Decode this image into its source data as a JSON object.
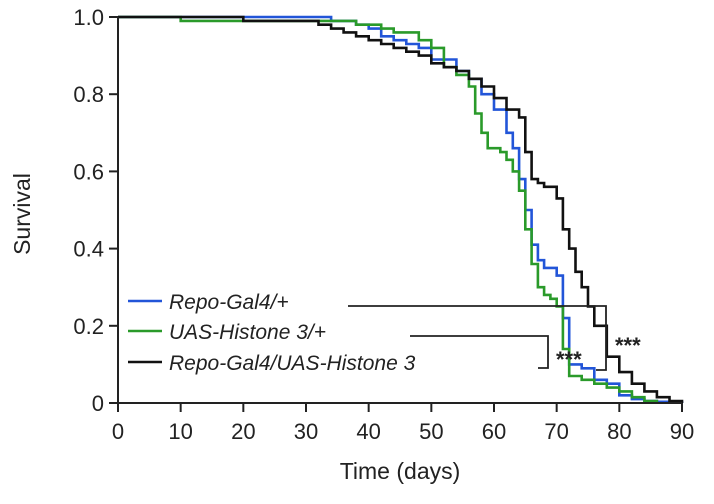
{
  "chart_data": {
    "type": "line",
    "title": "",
    "xlabel": "Time (days)",
    "ylabel": "Survival",
    "xlim": [
      0,
      90
    ],
    "ylim": [
      0,
      1.0
    ],
    "x_ticks": [
      0,
      10,
      20,
      30,
      40,
      50,
      60,
      70,
      80,
      90
    ],
    "x_tick_labels": [
      "0",
      "10",
      "20",
      "30",
      "40",
      "50",
      "60",
      "70",
      "80",
      "90"
    ],
    "y_ticks": [
      0,
      0.2,
      0.4,
      0.6,
      0.8,
      1.0
    ],
    "y_tick_labels": [
      "0",
      "0.2",
      "0.4",
      "0.6",
      "0.8",
      "1.0"
    ],
    "grid": false,
    "legend_position": "bottom-left",
    "series": [
      {
        "name": "Repo-Gal4/+",
        "color": "#2255d8",
        "x": [
          0,
          10,
          20,
          30,
          34,
          38,
          40,
          42,
          44,
          46,
          48,
          50,
          54,
          56,
          58,
          60,
          62,
          63,
          64,
          65,
          66,
          67,
          68,
          70,
          71,
          72,
          74,
          76,
          78,
          80,
          82,
          84,
          86,
          88,
          90
        ],
        "y": [
          1.0,
          1.0,
          1.0,
          1.0,
          0.99,
          0.98,
          0.97,
          0.95,
          0.94,
          0.93,
          0.92,
          0.89,
          0.86,
          0.84,
          0.8,
          0.76,
          0.7,
          0.66,
          0.58,
          0.5,
          0.41,
          0.37,
          0.35,
          0.33,
          0.22,
          0.1,
          0.09,
          0.06,
          0.05,
          0.02,
          0.01,
          0.005,
          0.003,
          0.001,
          0.0
        ]
      },
      {
        "name": "UAS-Histone 3/+",
        "color": "#2a9a2a",
        "x": [
          0,
          5,
          10,
          15,
          20,
          25,
          30,
          35,
          38,
          40,
          42,
          44,
          46,
          48,
          50,
          52,
          54,
          56,
          57,
          58,
          59,
          60,
          61,
          62,
          63,
          64,
          65,
          66,
          67,
          68,
          69,
          70,
          71,
          72,
          74,
          76,
          78,
          80,
          82,
          84,
          86
        ],
        "y": [
          1.0,
          1.0,
          0.99,
          0.99,
          0.99,
          0.99,
          0.99,
          0.99,
          0.98,
          0.98,
          0.97,
          0.96,
          0.96,
          0.94,
          0.92,
          0.87,
          0.85,
          0.82,
          0.75,
          0.7,
          0.66,
          0.66,
          0.65,
          0.63,
          0.6,
          0.55,
          0.45,
          0.36,
          0.3,
          0.28,
          0.27,
          0.25,
          0.14,
          0.07,
          0.06,
          0.05,
          0.04,
          0.03,
          0.015,
          0.005,
          0.0
        ]
      },
      {
        "name": "Repo-Gal4/UAS-Histone 3",
        "color": "#111111",
        "x": [
          0,
          10,
          20,
          30,
          32,
          34,
          36,
          38,
          40,
          42,
          44,
          46,
          48,
          50,
          52,
          54,
          56,
          58,
          60,
          62,
          64,
          65,
          66,
          67,
          68,
          70,
          71,
          72,
          73,
          74,
          75,
          76,
          78,
          80,
          82,
          84,
          86,
          88,
          90
        ],
        "y": [
          1.0,
          1.0,
          0.99,
          0.99,
          0.98,
          0.97,
          0.96,
          0.95,
          0.94,
          0.93,
          0.92,
          0.91,
          0.9,
          0.88,
          0.87,
          0.86,
          0.84,
          0.82,
          0.79,
          0.76,
          0.74,
          0.65,
          0.58,
          0.57,
          0.56,
          0.53,
          0.45,
          0.4,
          0.34,
          0.3,
          0.25,
          0.2,
          0.12,
          0.08,
          0.05,
          0.03,
          0.015,
          0.005,
          0.0
        ]
      }
    ],
    "significance": [
      {
        "label": "***",
        "comparison": [
          "UAS-Histone 3/+",
          "Repo-Gal4/UAS-Histone 3"
        ]
      },
      {
        "label": "***",
        "comparison": [
          "Repo-Gal4/+",
          "Repo-Gal4/UAS-Histone 3"
        ]
      }
    ]
  }
}
